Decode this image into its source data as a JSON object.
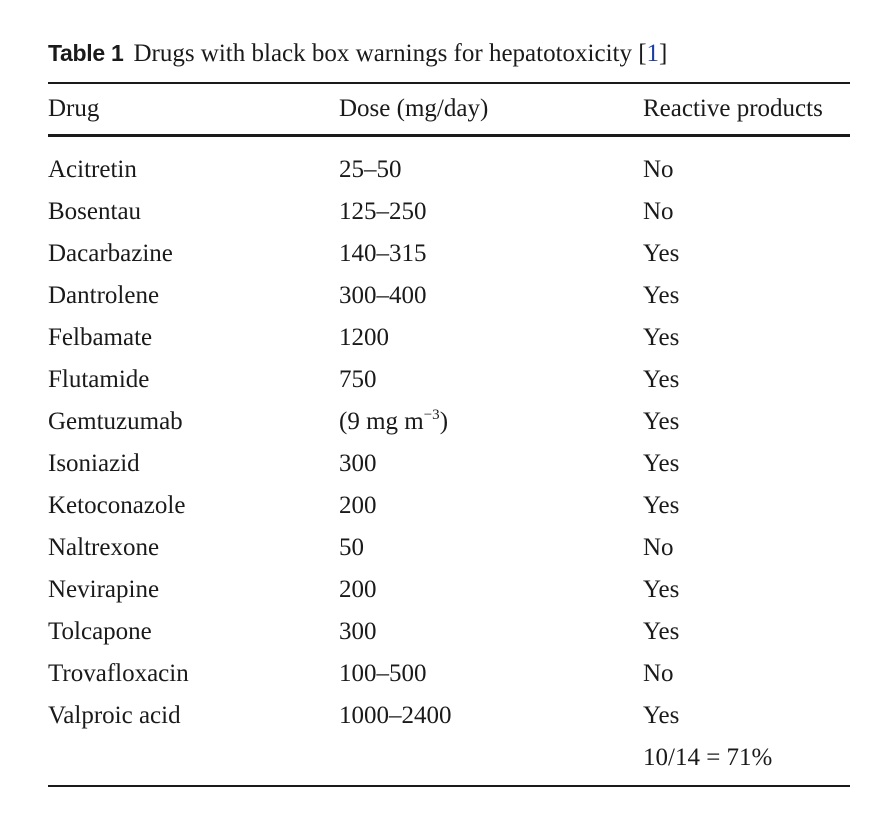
{
  "caption": {
    "label": "Table 1",
    "text": "Drugs with black box warnings for hepatotoxicity [",
    "ref": "1",
    "close": "]"
  },
  "table": {
    "headers": [
      "Drug",
      "Dose (mg/day)",
      "Reactive products"
    ],
    "rows": [
      {
        "drug": "Acitretin",
        "dose": "25–50",
        "reactive": "No"
      },
      {
        "drug": "Bosentau",
        "dose": "125–250",
        "reactive": "No"
      },
      {
        "drug": "Dacarbazine",
        "dose": "140–315",
        "reactive": "Yes"
      },
      {
        "drug": "Dantrolene",
        "dose": "300–400",
        "reactive": "Yes"
      },
      {
        "drug": "Felbamate",
        "dose": "1200",
        "reactive": "Yes"
      },
      {
        "drug": "Flutamide",
        "dose": "750",
        "reactive": "Yes"
      },
      {
        "drug": "Gemtuzumab",
        "dose": "(9 mg m",
        "dose_sup": "−3",
        "dose_close": ")",
        "reactive": "Yes"
      },
      {
        "drug": "Isoniazid",
        "dose": "300",
        "reactive": "Yes"
      },
      {
        "drug": "Ketoconazole",
        "dose": "200",
        "reactive": "Yes"
      },
      {
        "drug": "Naltrexone",
        "dose": "50",
        "reactive": "No"
      },
      {
        "drug": "Nevirapine",
        "dose": "200",
        "reactive": "Yes"
      },
      {
        "drug": "Tolcapone",
        "dose": "300",
        "reactive": "Yes"
      },
      {
        "drug": "Trovafloxacin",
        "dose": "100–500",
        "reactive": "No"
      },
      {
        "drug": "Valproic acid",
        "dose": "1000–2400",
        "reactive": "Yes"
      }
    ],
    "summary": {
      "drug": "",
      "dose": "",
      "reactive": "10/14 = 71%"
    }
  }
}
